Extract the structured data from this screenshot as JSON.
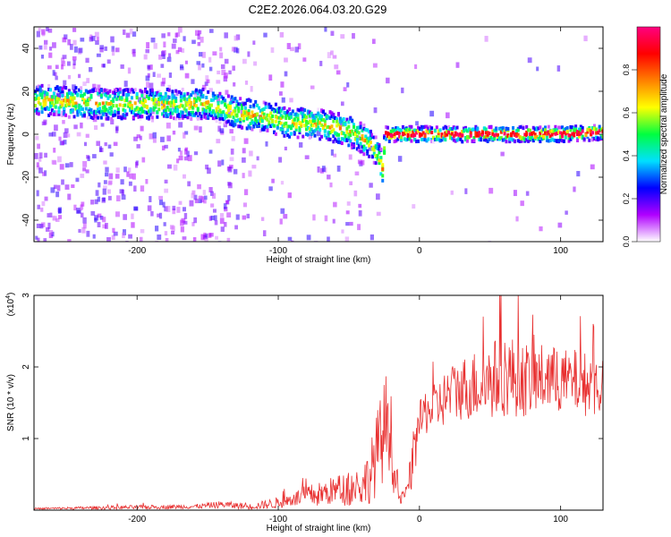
{
  "title": "C2E2.2026.064.03.20.G29",
  "chart_data": [
    {
      "type": "heatmap",
      "title": "C2E2.2026.064.03.20.G29",
      "xlabel": "Height of straight line (km)",
      "ylabel": "Frequency (Hz)",
      "xlim": [
        -273,
        130
      ],
      "ylim": [
        -50,
        50
      ],
      "xticks": [
        -200,
        -100,
        0,
        100
      ],
      "yticks": [
        -40,
        -20,
        0,
        20,
        40
      ],
      "colorbar": {
        "label": "Normalized spectral amplitude",
        "range": [
          0,
          1
        ],
        "ticks": [
          "0.0",
          "0.2",
          "0.4",
          "0.6",
          "0.8"
        ],
        "colors": [
          "#ffffff",
          "#b000ff",
          "#0000ff",
          "#00e0ff",
          "#00ff40",
          "#ffff00",
          "#ff8000",
          "#ff0000",
          "#ff0080"
        ]
      },
      "ridge": {
        "description": "dominant Doppler frequency track",
        "x": [
          -273,
          -250,
          -220,
          -180,
          -150,
          -130,
          -110,
          -90,
          -75,
          -60,
          -45,
          -35,
          -30,
          -27,
          -25,
          -20,
          0,
          50,
          100,
          130
        ],
        "y": [
          16,
          15,
          14,
          14,
          14,
          10,
          8,
          5,
          5,
          3,
          0,
          -5,
          -10,
          -16,
          0,
          0,
          0,
          0,
          0,
          1
        ]
      }
    },
    {
      "type": "line",
      "xlabel": "Height of straight line (km)",
      "ylabel": "SNR (10 * v/v)",
      "yscale_label": "(x10",
      "yscale_exp": "4",
      "xlim": [
        -273,
        130
      ],
      "ylim": [
        0,
        3
      ],
      "xticks": [
        -200,
        -100,
        0,
        100
      ],
      "yticks": [
        1,
        2,
        3
      ],
      "color": "#e83030",
      "envelope": {
        "x": [
          -273,
          -240,
          -200,
          -160,
          -140,
          -120,
          -100,
          -90,
          -80,
          -70,
          -60,
          -50,
          -40,
          -35,
          -30,
          -25,
          -22,
          -20,
          -18,
          -15,
          -12,
          -10,
          -5,
          0,
          5,
          10,
          20,
          30,
          40,
          50,
          60,
          70,
          80,
          90,
          100,
          110,
          120,
          130
        ],
        "mean": [
          0.02,
          0.03,
          0.04,
          0.05,
          0.08,
          0.05,
          0.1,
          0.15,
          0.2,
          0.22,
          0.28,
          0.3,
          0.35,
          0.5,
          0.8,
          1.1,
          1.4,
          1.0,
          0.5,
          0.2,
          0.15,
          0.2,
          0.6,
          1.2,
          1.4,
          1.4,
          1.6,
          1.7,
          1.75,
          1.8,
          1.9,
          1.85,
          1.8,
          1.85,
          1.8,
          1.8,
          1.75,
          1.75
        ],
        "amplitude": [
          0.01,
          0.02,
          0.03,
          0.03,
          0.05,
          0.04,
          0.08,
          0.1,
          0.15,
          0.18,
          0.2,
          0.25,
          0.3,
          0.4,
          0.6,
          0.7,
          0.8,
          0.6,
          0.3,
          0.1,
          0.1,
          0.15,
          0.3,
          0.3,
          0.35,
          0.35,
          0.4,
          0.45,
          0.5,
          0.55,
          0.6,
          0.55,
          0.5,
          0.5,
          0.45,
          0.45,
          0.45,
          0.45
        ]
      }
    }
  ]
}
